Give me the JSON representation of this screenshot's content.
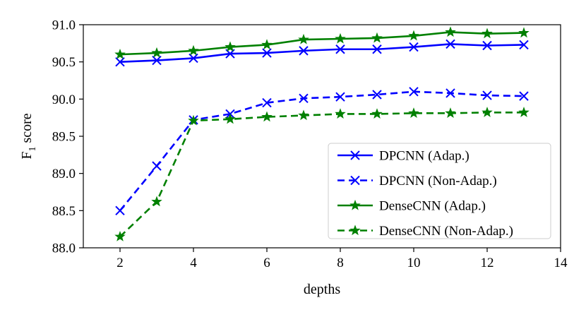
{
  "chart_data": {
    "type": "line",
    "title": "",
    "xlabel": "depths",
    "ylabel": "F1 score",
    "ylabel_parts": {
      "base": "F",
      "subscript": "1",
      "suffix": " score"
    },
    "xlim": [
      1,
      14
    ],
    "ylim": [
      88.0,
      91.0
    ],
    "xticks": [
      2,
      4,
      6,
      8,
      10,
      12,
      14
    ],
    "yticks": [
      88.0,
      88.5,
      89.0,
      89.5,
      90.0,
      90.5,
      91.0
    ],
    "ytick_labels": [
      "88.0",
      "88.5",
      "89.0",
      "89.5",
      "90.0",
      "90.5",
      "91.0"
    ],
    "grid": false,
    "legend_position": "lower-right",
    "x": [
      2,
      3,
      4,
      5,
      6,
      7,
      8,
      9,
      10,
      11,
      12,
      13
    ],
    "series": [
      {
        "name": "DPCNN (Adap.)",
        "color": "#0000ff",
        "linestyle": "solid",
        "marker": "x",
        "values": [
          90.5,
          90.52,
          90.55,
          90.61,
          90.62,
          90.65,
          90.67,
          90.67,
          90.7,
          90.74,
          90.72,
          90.73
        ]
      },
      {
        "name": "DPCNN (Non-Adap.)",
        "color": "#0000ff",
        "linestyle": "dashed",
        "marker": "x",
        "values": [
          88.5,
          89.1,
          89.72,
          89.8,
          89.95,
          90.01,
          90.03,
          90.06,
          90.1,
          90.08,
          90.05,
          90.04
        ]
      },
      {
        "name": "DenseCNN (Adap.)",
        "color": "#008000",
        "linestyle": "solid",
        "marker": "star",
        "values": [
          90.6,
          90.62,
          90.65,
          90.7,
          90.73,
          90.8,
          90.81,
          90.82,
          90.85,
          90.9,
          90.88,
          90.89
        ]
      },
      {
        "name": "DenseCNN (Non-Adap.)",
        "color": "#008000",
        "linestyle": "dashed",
        "marker": "star",
        "values": [
          88.15,
          88.62,
          89.71,
          89.73,
          89.76,
          89.78,
          89.8,
          89.8,
          89.81,
          89.81,
          89.82,
          89.82
        ]
      }
    ]
  }
}
